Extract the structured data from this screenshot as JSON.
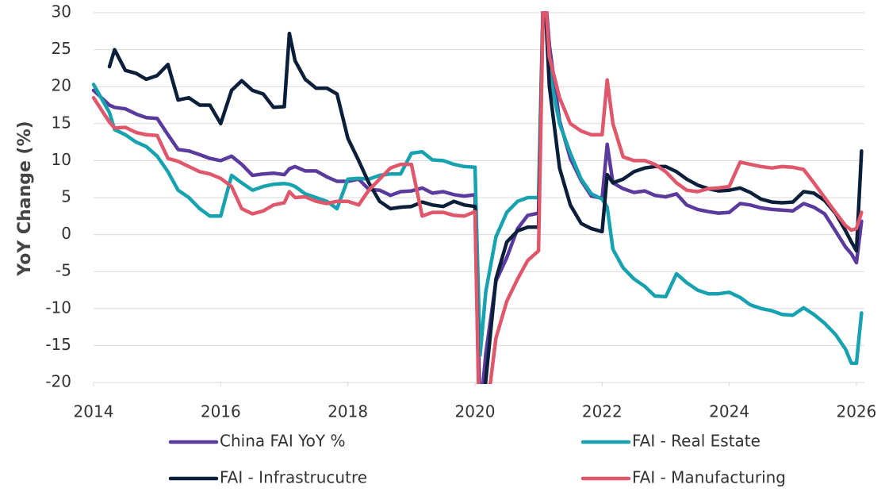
{
  "chart_data": {
    "type": "line",
    "y_label": "YoY Change (%)",
    "x": [
      2014.0,
      2014.25,
      2014.33,
      2014.5,
      2014.67,
      2014.83,
      2015.0,
      2015.17,
      2015.33,
      2015.5,
      2015.67,
      2015.83,
      2016.0,
      2016.17,
      2016.33,
      2016.5,
      2016.67,
      2016.83,
      2017.0,
      2017.08,
      2017.17,
      2017.33,
      2017.5,
      2017.67,
      2017.83,
      2018.0,
      2018.17,
      2018.33,
      2018.5,
      2018.67,
      2018.83,
      2019.0,
      2019.17,
      2019.33,
      2019.5,
      2019.67,
      2019.83,
      2020.0,
      2020.08,
      2020.17,
      2020.33,
      2020.5,
      2020.67,
      2020.83,
      2021.0,
      2021.08,
      2021.17,
      2021.33,
      2021.5,
      2021.67,
      2021.83,
      2022.0,
      2022.08,
      2022.17,
      2022.33,
      2022.5,
      2022.67,
      2022.83,
      2023.0,
      2023.17,
      2023.33,
      2023.5,
      2023.67,
      2023.83,
      2024.0,
      2024.17,
      2024.33,
      2024.5,
      2024.67,
      2024.83,
      2025.0,
      2025.17,
      2025.33,
      2025.5,
      2025.67,
      2025.83,
      2025.92,
      2026.0,
      2026.08
    ],
    "series": [
      {
        "name": "China FAI YoY %",
        "color": "#5b3a9e",
        "values": [
          19.5,
          17.5,
          17.2,
          17.0,
          16.3,
          15.8,
          15.7,
          13.5,
          11.5,
          11.3,
          10.8,
          10.3,
          10.0,
          10.6,
          9.5,
          8.0,
          8.2,
          8.3,
          8.1,
          8.9,
          9.2,
          8.6,
          8.6,
          7.8,
          7.2,
          7.2,
          7.5,
          6.1,
          6.0,
          5.3,
          5.8,
          5.9,
          6.3,
          5.6,
          5.8,
          5.4,
          5.2,
          5.4,
          -24.5,
          -16.1,
          -6.3,
          -3.1,
          0.8,
          2.6,
          2.9,
          35.0,
          25.6,
          15.4,
          10.3,
          7.3,
          5.2,
          4.9,
          12.2,
          7.0,
          6.2,
          5.7,
          5.9,
          5.3,
          5.1,
          5.5,
          4.0,
          3.4,
          3.1,
          2.9,
          3.0,
          4.2,
          4.0,
          3.6,
          3.4,
          3.3,
          3.2,
          4.2,
          3.7,
          2.8,
          0.5,
          -1.7,
          -2.6,
          -3.8,
          1.8
        ]
      },
      {
        "name": "FAI - Real Estate",
        "color": "#17a2b0",
        "values": [
          20.3,
          16.5,
          14.2,
          13.5,
          12.5,
          11.9,
          10.6,
          8.5,
          6.0,
          5.0,
          3.5,
          2.5,
          2.5,
          8.0,
          7.0,
          6.0,
          6.5,
          6.8,
          6.9,
          6.8,
          6.5,
          5.5,
          5.0,
          4.5,
          3.5,
          7.5,
          7.6,
          7.5,
          8.0,
          8.2,
          8.2,
          11.0,
          11.2,
          10.1,
          10.0,
          9.5,
          9.2,
          9.1,
          -16.3,
          -7.7,
          -0.3,
          3.0,
          4.5,
          5.0,
          5.0,
          35.0,
          22.0,
          15.0,
          11.0,
          7.5,
          5.5,
          4.8,
          3.7,
          -2.0,
          -4.5,
          -6.0,
          -7.0,
          -8.3,
          -8.4,
          -5.3,
          -6.5,
          -7.5,
          -8.0,
          -8.0,
          -7.8,
          -8.5,
          -9.5,
          -10.0,
          -10.3,
          -10.8,
          -10.9,
          -9.9,
          -10.8,
          -12.0,
          -13.5,
          -15.5,
          -17.4,
          -17.4,
          -10.6
        ]
      },
      {
        "name": "FAI - Infrastrucutre",
        "color": "#0b1f3a",
        "values": [
          null,
          22.7,
          25.0,
          22.2,
          21.8,
          21.0,
          21.5,
          23.0,
          18.2,
          18.5,
          17.5,
          17.5,
          15.0,
          19.5,
          20.8,
          19.5,
          19.0,
          17.2,
          17.3,
          27.2,
          23.5,
          21.0,
          19.8,
          19.8,
          19.0,
          13.0,
          10.0,
          7.0,
          4.5,
          3.5,
          3.7,
          3.8,
          4.4,
          4.0,
          3.8,
          4.5,
          4.0,
          3.8,
          -30.0,
          -19.7,
          -6.0,
          -1.0,
          0.5,
          1.0,
          1.0,
          35.0,
          20.0,
          9.0,
          4.0,
          1.5,
          0.8,
          0.4,
          8.1,
          7.0,
          7.5,
          8.5,
          9.0,
          9.2,
          9.2,
          8.5,
          7.5,
          6.7,
          6.2,
          5.9,
          6.0,
          6.3,
          5.7,
          4.8,
          4.4,
          4.3,
          4.4,
          5.8,
          5.6,
          4.6,
          2.9,
          0.5,
          -1.0,
          -2.2,
          11.3
        ]
      },
      {
        "name": "FAI - Manufacturing",
        "color": "#e0566b",
        "values": [
          18.5,
          15.2,
          14.4,
          14.5,
          13.8,
          13.5,
          13.4,
          10.3,
          9.9,
          9.2,
          8.5,
          8.2,
          7.6,
          6.5,
          3.5,
          2.8,
          3.2,
          4.0,
          4.3,
          5.8,
          5.0,
          5.1,
          4.5,
          4.2,
          4.5,
          4.5,
          4.0,
          6.0,
          7.5,
          9.0,
          9.5,
          9.5,
          2.5,
          3.0,
          3.0,
          2.6,
          2.5,
          3.1,
          -31.5,
          -25.0,
          -14.0,
          -9.0,
          -6.0,
          -3.5,
          -2.2,
          35.0,
          24.0,
          18.5,
          15.0,
          14.0,
          13.5,
          13.5,
          20.9,
          15.0,
          10.5,
          10.0,
          10.0,
          9.5,
          8.5,
          7.0,
          6.0,
          5.8,
          6.2,
          6.3,
          6.5,
          9.8,
          9.5,
          9.2,
          9.0,
          9.2,
          9.1,
          8.8,
          7.0,
          5.0,
          3.0,
          1.2,
          0.6,
          0.8,
          3.0
        ]
      }
    ],
    "xlim": [
      2014,
      2026.2
    ],
    "xticks": [
      2014,
      2016,
      2018,
      2020,
      2022,
      2024,
      2026
    ],
    "ylim": [
      -20,
      30
    ],
    "yticks": [
      -20,
      -15,
      -10,
      -5,
      0,
      5,
      10,
      15,
      20,
      25,
      30
    ],
    "grid": true,
    "legend": "bottom"
  }
}
